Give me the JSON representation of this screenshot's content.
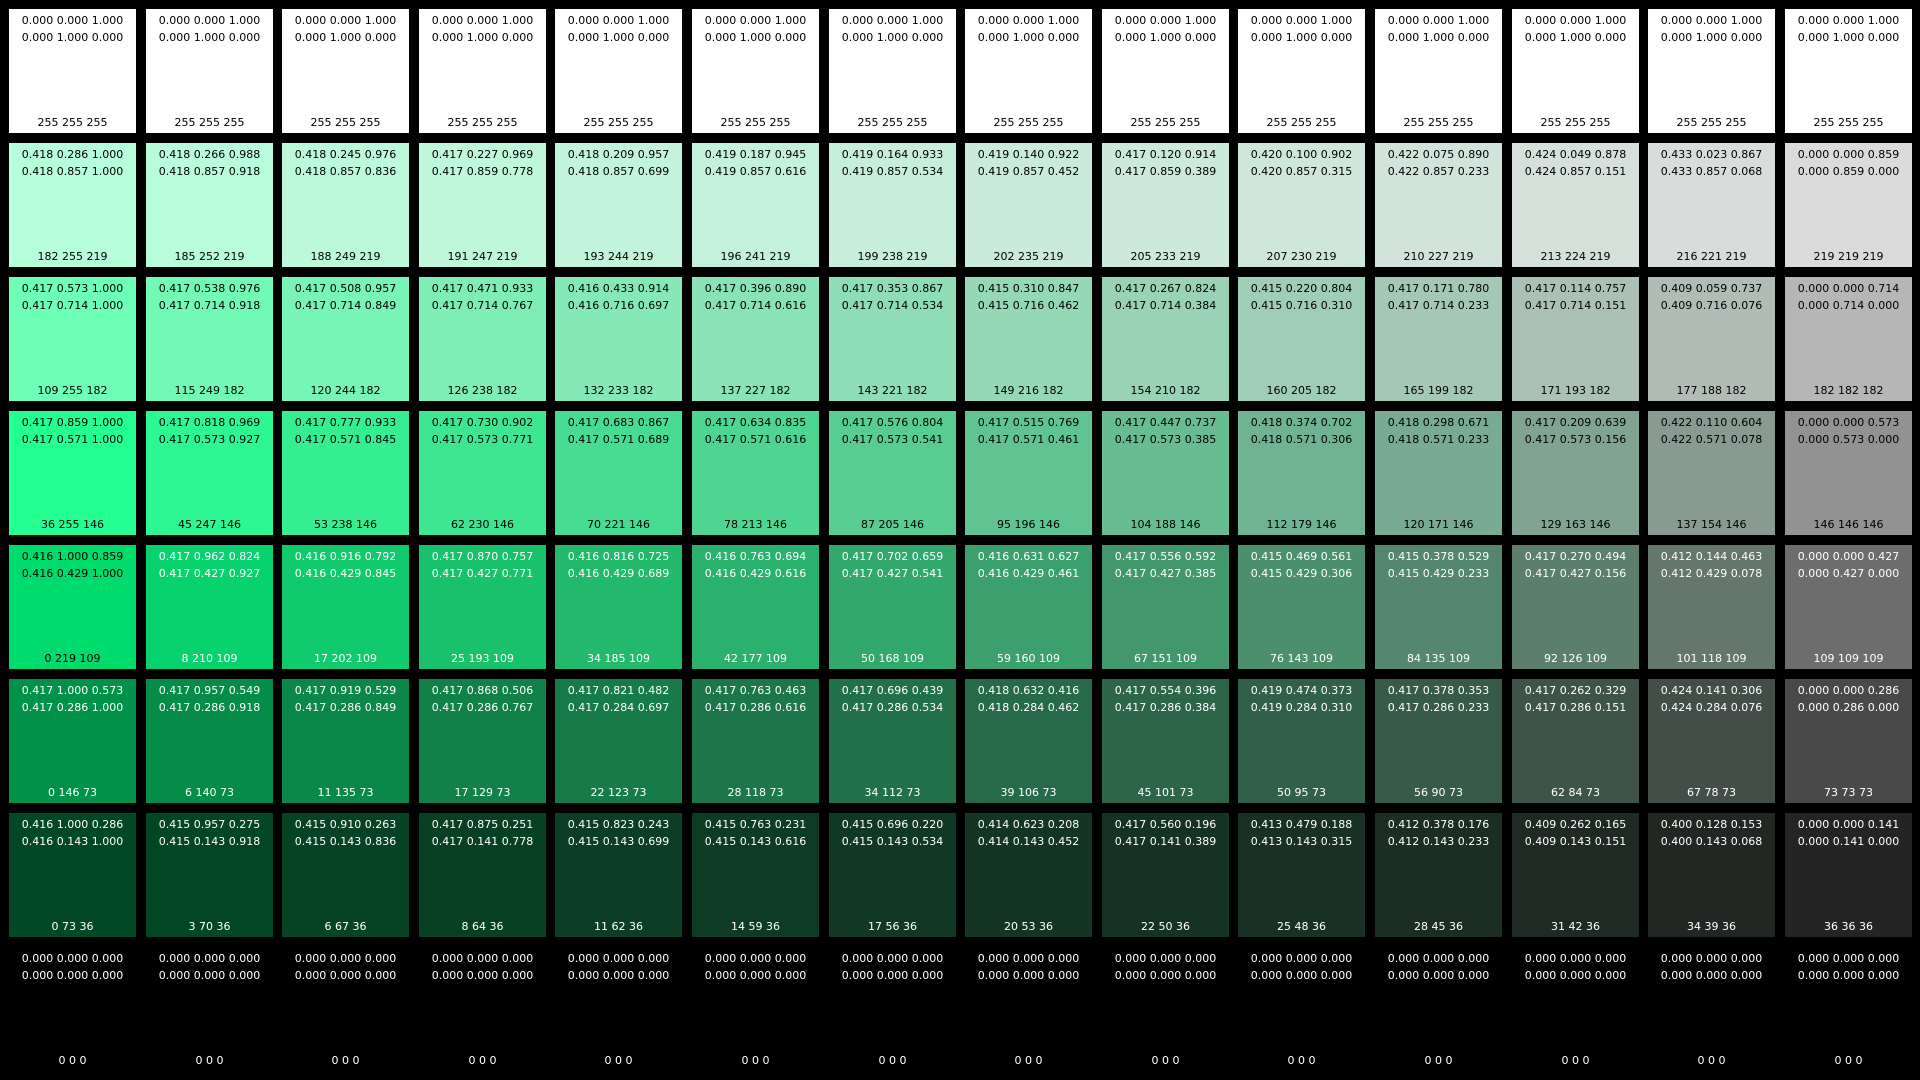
{
  "rows": [
    {
      "cells": [
        {
          "l1": "0.000 0.000 1.000",
          "l2": "0.000 1.000 0.000",
          "rgb": "255 255 255"
        },
        {
          "l1": "0.000 0.000 1.000",
          "l2": "0.000 1.000 0.000",
          "rgb": "255 255 255"
        },
        {
          "l1": "0.000 0.000 1.000",
          "l2": "0.000 1.000 0.000",
          "rgb": "255 255 255"
        },
        {
          "l1": "0.000 0.000 1.000",
          "l2": "0.000 1.000 0.000",
          "rgb": "255 255 255"
        },
        {
          "l1": "0.000 0.000 1.000",
          "l2": "0.000 1.000 0.000",
          "rgb": "255 255 255"
        },
        {
          "l1": "0.000 0.000 1.000",
          "l2": "0.000 1.000 0.000",
          "rgb": "255 255 255"
        },
        {
          "l1": "0.000 0.000 1.000",
          "l2": "0.000 1.000 0.000",
          "rgb": "255 255 255"
        },
        {
          "l1": "0.000 0.000 1.000",
          "l2": "0.000 1.000 0.000",
          "rgb": "255 255 255"
        },
        {
          "l1": "0.000 0.000 1.000",
          "l2": "0.000 1.000 0.000",
          "rgb": "255 255 255"
        },
        {
          "l1": "0.000 0.000 1.000",
          "l2": "0.000 1.000 0.000",
          "rgb": "255 255 255"
        },
        {
          "l1": "0.000 0.000 1.000",
          "l2": "0.000 1.000 0.000",
          "rgb": "255 255 255"
        },
        {
          "l1": "0.000 0.000 1.000",
          "l2": "0.000 1.000 0.000",
          "rgb": "255 255 255"
        },
        {
          "l1": "0.000 0.000 1.000",
          "l2": "0.000 1.000 0.000",
          "rgb": "255 255 255"
        },
        {
          "l1": "0.000 0.000 1.000",
          "l2": "0.000 1.000 0.000",
          "rgb": "255 255 255"
        }
      ]
    },
    {
      "cells": [
        {
          "l1": "0.418 0.286 1.000",
          "l2": "0.418 0.857 1.000",
          "rgb": "182 255 219"
        },
        {
          "l1": "0.418 0.266 0.988",
          "l2": "0.418 0.857 0.918",
          "rgb": "185 252 219"
        },
        {
          "l1": "0.418 0.245 0.976",
          "l2": "0.418 0.857 0.836",
          "rgb": "188 249 219"
        },
        {
          "l1": "0.417 0.227 0.969",
          "l2": "0.417 0.859 0.778",
          "rgb": "191 247 219"
        },
        {
          "l1": "0.418 0.209 0.957",
          "l2": "0.418 0.857 0.699",
          "rgb": "193 244 219"
        },
        {
          "l1": "0.419 0.187 0.945",
          "l2": "0.419 0.857 0.616",
          "rgb": "196 241 219"
        },
        {
          "l1": "0.419 0.164 0.933",
          "l2": "0.419 0.857 0.534",
          "rgb": "199 238 219"
        },
        {
          "l1": "0.419 0.140 0.922",
          "l2": "0.419 0.857 0.452",
          "rgb": "202 235 219"
        },
        {
          "l1": "0.417 0.120 0.914",
          "l2": "0.417 0.859 0.389",
          "rgb": "205 233 219"
        },
        {
          "l1": "0.420 0.100 0.902",
          "l2": "0.420 0.857 0.315",
          "rgb": "207 230 219"
        },
        {
          "l1": "0.422 0.075 0.890",
          "l2": "0.422 0.857 0.233",
          "rgb": "210 227 219"
        },
        {
          "l1": "0.424 0.049 0.878",
          "l2": "0.424 0.857 0.151",
          "rgb": "213 224 219"
        },
        {
          "l1": "0.433 0.023 0.867",
          "l2": "0.433 0.857 0.068",
          "rgb": "216 221 219"
        },
        {
          "l1": "0.000 0.000 0.859",
          "l2": "0.000 0.859 0.000",
          "rgb": "219 219 219"
        }
      ]
    },
    {
      "cells": [
        {
          "l1": "0.417 0.573 1.000",
          "l2": "0.417 0.714 1.000",
          "rgb": "109 255 182"
        },
        {
          "l1": "0.417 0.538 0.976",
          "l2": "0.417 0.714 0.918",
          "rgb": "115 249 182"
        },
        {
          "l1": "0.417 0.508 0.957",
          "l2": "0.417 0.714 0.849",
          "rgb": "120 244 182"
        },
        {
          "l1": "0.417 0.471 0.933",
          "l2": "0.417 0.714 0.767",
          "rgb": "126 238 182"
        },
        {
          "l1": "0.416 0.433 0.914",
          "l2": "0.416 0.716 0.697",
          "rgb": "132 233 182"
        },
        {
          "l1": "0.417 0.396 0.890",
          "l2": "0.417 0.714 0.616",
          "rgb": "137 227 182"
        },
        {
          "l1": "0.417 0.353 0.867",
          "l2": "0.417 0.714 0.534",
          "rgb": "143 221 182"
        },
        {
          "l1": "0.415 0.310 0.847",
          "l2": "0.415 0.716 0.462",
          "rgb": "149 216 182"
        },
        {
          "l1": "0.417 0.267 0.824",
          "l2": "0.417 0.714 0.384",
          "rgb": "154 210 182"
        },
        {
          "l1": "0.415 0.220 0.804",
          "l2": "0.415 0.716 0.310",
          "rgb": "160 205 182"
        },
        {
          "l1": "0.417 0.171 0.780",
          "l2": "0.417 0.714 0.233",
          "rgb": "165 199 182"
        },
        {
          "l1": "0.417 0.114 0.757",
          "l2": "0.417 0.714 0.151",
          "rgb": "171 193 182"
        },
        {
          "l1": "0.409 0.059 0.737",
          "l2": "0.409 0.716 0.076",
          "rgb": "177 188 182"
        },
        {
          "l1": "0.000 0.000 0.714",
          "l2": "0.000 0.714 0.000",
          "rgb": "182 182 182"
        }
      ]
    },
    {
      "cells": [
        {
          "l1": "0.417 0.859 1.000",
          "l2": "0.417 0.571 1.000",
          "rgb": "36 255 146"
        },
        {
          "l1": "0.417 0.818 0.969",
          "l2": "0.417 0.573 0.927",
          "rgb": "45 247 146"
        },
        {
          "l1": "0.417 0.777 0.933",
          "l2": "0.417 0.571 0.845",
          "rgb": "53 238 146"
        },
        {
          "l1": "0.417 0.730 0.902",
          "l2": "0.417 0.573 0.771",
          "rgb": "62 230 146"
        },
        {
          "l1": "0.417 0.683 0.867",
          "l2": "0.417 0.571 0.689",
          "rgb": "70 221 146"
        },
        {
          "l1": "0.417 0.634 0.835",
          "l2": "0.417 0.571 0.616",
          "rgb": "78 213 146"
        },
        {
          "l1": "0.417 0.576 0.804",
          "l2": "0.417 0.573 0.541",
          "rgb": "87 205 146"
        },
        {
          "l1": "0.417 0.515 0.769",
          "l2": "0.417 0.571 0.461",
          "rgb": "95 196 146"
        },
        {
          "l1": "0.417 0.447 0.737",
          "l2": "0.417 0.573 0.385",
          "rgb": "104 188 146"
        },
        {
          "l1": "0.418 0.374 0.702",
          "l2": "0.418 0.571 0.306",
          "rgb": "112 179 146"
        },
        {
          "l1": "0.418 0.298 0.671",
          "l2": "0.418 0.571 0.233",
          "rgb": "120 171 146"
        },
        {
          "l1": "0.417 0.209 0.639",
          "l2": "0.417 0.573 0.156",
          "rgb": "129 163 146"
        },
        {
          "l1": "0.422 0.110 0.604",
          "l2": "0.422 0.571 0.078",
          "rgb": "137 154 146"
        },
        {
          "l1": "0.000 0.000 0.573",
          "l2": "0.000 0.573 0.000",
          "rgb": "146 146 146"
        }
      ]
    },
    {
      "cells": [
        {
          "l1": "0.416 1.000 0.859",
          "l2": "0.416 0.429 1.000",
          "rgb": "0 219 109"
        },
        {
          "l1": "0.417 0.962 0.824",
          "l2": "0.417 0.427 0.927",
          "rgb": "8 210 109"
        },
        {
          "l1": "0.416 0.916 0.792",
          "l2": "0.416 0.429 0.845",
          "rgb": "17 202 109"
        },
        {
          "l1": "0.417 0.870 0.757",
          "l2": "0.417 0.427 0.771",
          "rgb": "25 193 109"
        },
        {
          "l1": "0.416 0.816 0.725",
          "l2": "0.416 0.429 0.689",
          "rgb": "34 185 109"
        },
        {
          "l1": "0.416 0.763 0.694",
          "l2": "0.416 0.429 0.616",
          "rgb": "42 177 109"
        },
        {
          "l1": "0.417 0.702 0.659",
          "l2": "0.417 0.427 0.541",
          "rgb": "50 168 109"
        },
        {
          "l1": "0.416 0.631 0.627",
          "l2": "0.416 0.429 0.461",
          "rgb": "59 160 109"
        },
        {
          "l1": "0.417 0.556 0.592",
          "l2": "0.417 0.427 0.385",
          "rgb": "67 151 109"
        },
        {
          "l1": "0.415 0.469 0.561",
          "l2": "0.415 0.429 0.306",
          "rgb": "76 143 109"
        },
        {
          "l1": "0.415 0.378 0.529",
          "l2": "0.415 0.429 0.233",
          "rgb": "84 135 109"
        },
        {
          "l1": "0.417 0.270 0.494",
          "l2": "0.417 0.427 0.156",
          "rgb": "92 126 109"
        },
        {
          "l1": "0.412 0.144 0.463",
          "l2": "0.412 0.429 0.078",
          "rgb": "101 118 109"
        },
        {
          "l1": "0.000 0.000 0.427",
          "l2": "0.000 0.427 0.000",
          "rgb": "109 109 109"
        }
      ]
    },
    {
      "cells": [
        {
          "l1": "0.417 1.000 0.573",
          "l2": "0.417 0.286 1.000",
          "rgb": "0 146 73"
        },
        {
          "l1": "0.417 0.957 0.549",
          "l2": "0.417 0.286 0.918",
          "rgb": "6 140 73"
        },
        {
          "l1": "0.417 0.919 0.529",
          "l2": "0.417 0.286 0.849",
          "rgb": "11 135 73"
        },
        {
          "l1": "0.417 0.868 0.506",
          "l2": "0.417 0.286 0.767",
          "rgb": "17 129 73"
        },
        {
          "l1": "0.417 0.821 0.482",
          "l2": "0.417 0.284 0.697",
          "rgb": "22 123 73"
        },
        {
          "l1": "0.417 0.763 0.463",
          "l2": "0.417 0.286 0.616",
          "rgb": "28 118 73"
        },
        {
          "l1": "0.417 0.696 0.439",
          "l2": "0.417 0.286 0.534",
          "rgb": "34 112 73"
        },
        {
          "l1": "0.418 0.632 0.416",
          "l2": "0.418 0.284 0.462",
          "rgb": "39 106 73"
        },
        {
          "l1": "0.417 0.554 0.396",
          "l2": "0.417 0.286 0.384",
          "rgb": "45 101 73"
        },
        {
          "l1": "0.419 0.474 0.373",
          "l2": "0.419 0.284 0.310",
          "rgb": "50 95 73"
        },
        {
          "l1": "0.417 0.378 0.353",
          "l2": "0.417 0.286 0.233",
          "rgb": "56 90 73"
        },
        {
          "l1": "0.417 0.262 0.329",
          "l2": "0.417 0.286 0.151",
          "rgb": "62 84 73"
        },
        {
          "l1": "0.424 0.141 0.306",
          "l2": "0.424 0.284 0.076",
          "rgb": "67 78 73"
        },
        {
          "l1": "0.000 0.000 0.286",
          "l2": "0.000 0.286 0.000",
          "rgb": "73 73 73"
        }
      ]
    },
    {
      "cells": [
        {
          "l1": "0.416 1.000 0.286",
          "l2": "0.416 0.143 1.000",
          "rgb": "0 73 36"
        },
        {
          "l1": "0.415 0.957 0.275",
          "l2": "0.415 0.143 0.918",
          "rgb": "3 70 36"
        },
        {
          "l1": "0.415 0.910 0.263",
          "l2": "0.415 0.143 0.836",
          "rgb": "6 67 36"
        },
        {
          "l1": "0.417 0.875 0.251",
          "l2": "0.417 0.141 0.778",
          "rgb": "8 64 36"
        },
        {
          "l1": "0.415 0.823 0.243",
          "l2": "0.415 0.143 0.699",
          "rgb": "11 62 36"
        },
        {
          "l1": "0.415 0.763 0.231",
          "l2": "0.415 0.143 0.616",
          "rgb": "14 59 36"
        },
        {
          "l1": "0.415 0.696 0.220",
          "l2": "0.415 0.143 0.534",
          "rgb": "17 56 36"
        },
        {
          "l1": "0.414 0.623 0.208",
          "l2": "0.414 0.143 0.452",
          "rgb": "20 53 36"
        },
        {
          "l1": "0.417 0.560 0.196",
          "l2": "0.417 0.141 0.389",
          "rgb": "22 50 36"
        },
        {
          "l1": "0.413 0.479 0.188",
          "l2": "0.413 0.143 0.315",
          "rgb": "25 48 36"
        },
        {
          "l1": "0.412 0.378 0.176",
          "l2": "0.412 0.143 0.233",
          "rgb": "28 45 36"
        },
        {
          "l1": "0.409 0.262 0.165",
          "l2": "0.409 0.143 0.151",
          "rgb": "31 42 36"
        },
        {
          "l1": "0.400 0.128 0.153",
          "l2": "0.400 0.143 0.068",
          "rgb": "34 39 36"
        },
        {
          "l1": "0.000 0.000 0.141",
          "l2": "0.000 0.141 0.000",
          "rgb": "36 36 36"
        }
      ]
    },
    {
      "cells": [
        {
          "l1": "0.000 0.000 0.000",
          "l2": "0.000 0.000 0.000",
          "rgb": "0 0 0"
        },
        {
          "l1": "0.000 0.000 0.000",
          "l2": "0.000 0.000 0.000",
          "rgb": "0 0 0"
        },
        {
          "l1": "0.000 0.000 0.000",
          "l2": "0.000 0.000 0.000",
          "rgb": "0 0 0"
        },
        {
          "l1": "0.000 0.000 0.000",
          "l2": "0.000 0.000 0.000",
          "rgb": "0 0 0"
        },
        {
          "l1": "0.000 0.000 0.000",
          "l2": "0.000 0.000 0.000",
          "rgb": "0 0 0"
        },
        {
          "l1": "0.000 0.000 0.000",
          "l2": "0.000 0.000 0.000",
          "rgb": "0 0 0"
        },
        {
          "l1": "0.000 0.000 0.000",
          "l2": "0.000 0.000 0.000",
          "rgb": "0 0 0"
        },
        {
          "l1": "0.000 0.000 0.000",
          "l2": "0.000 0.000 0.000",
          "rgb": "0 0 0"
        },
        {
          "l1": "0.000 0.000 0.000",
          "l2": "0.000 0.000 0.000",
          "rgb": "0 0 0"
        },
        {
          "l1": "0.000 0.000 0.000",
          "l2": "0.000 0.000 0.000",
          "rgb": "0 0 0"
        },
        {
          "l1": "0.000 0.000 0.000",
          "l2": "0.000 0.000 0.000",
          "rgb": "0 0 0"
        },
        {
          "l1": "0.000 0.000 0.000",
          "l2": "0.000 0.000 0.000",
          "rgb": "0 0 0"
        },
        {
          "l1": "0.000 0.000 0.000",
          "l2": "0.000 0.000 0.000",
          "rgb": "0 0 0"
        },
        {
          "l1": "0.000 0.000 0.000",
          "l2": "0.000 0.000 0.000",
          "rgb": "0 0 0"
        }
      ]
    }
  ]
}
